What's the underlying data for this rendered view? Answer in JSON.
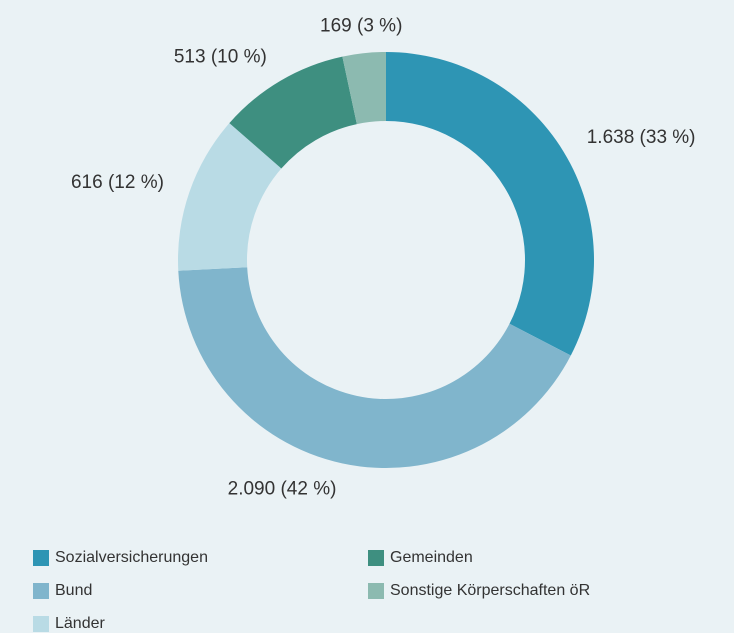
{
  "chart_data": {
    "type": "donut",
    "categories": [
      "Sozialversicherungen",
      "Bund",
      "Länder",
      "Gemeinden",
      "Sonstige Körperschaften öR"
    ],
    "values": [
      1638,
      2090,
      616,
      513,
      169
    ],
    "value_labels": [
      "1.638 (33 %)",
      "2.090 (42 %)",
      "616 (12 %)",
      "513 (10 %)",
      "169 (3 %)"
    ],
    "colors": [
      "#2e95b4",
      "#80b5cc",
      "#b9dbe5",
      "#3e8f80",
      "#8cbab0"
    ],
    "legend": "bottom"
  }
}
